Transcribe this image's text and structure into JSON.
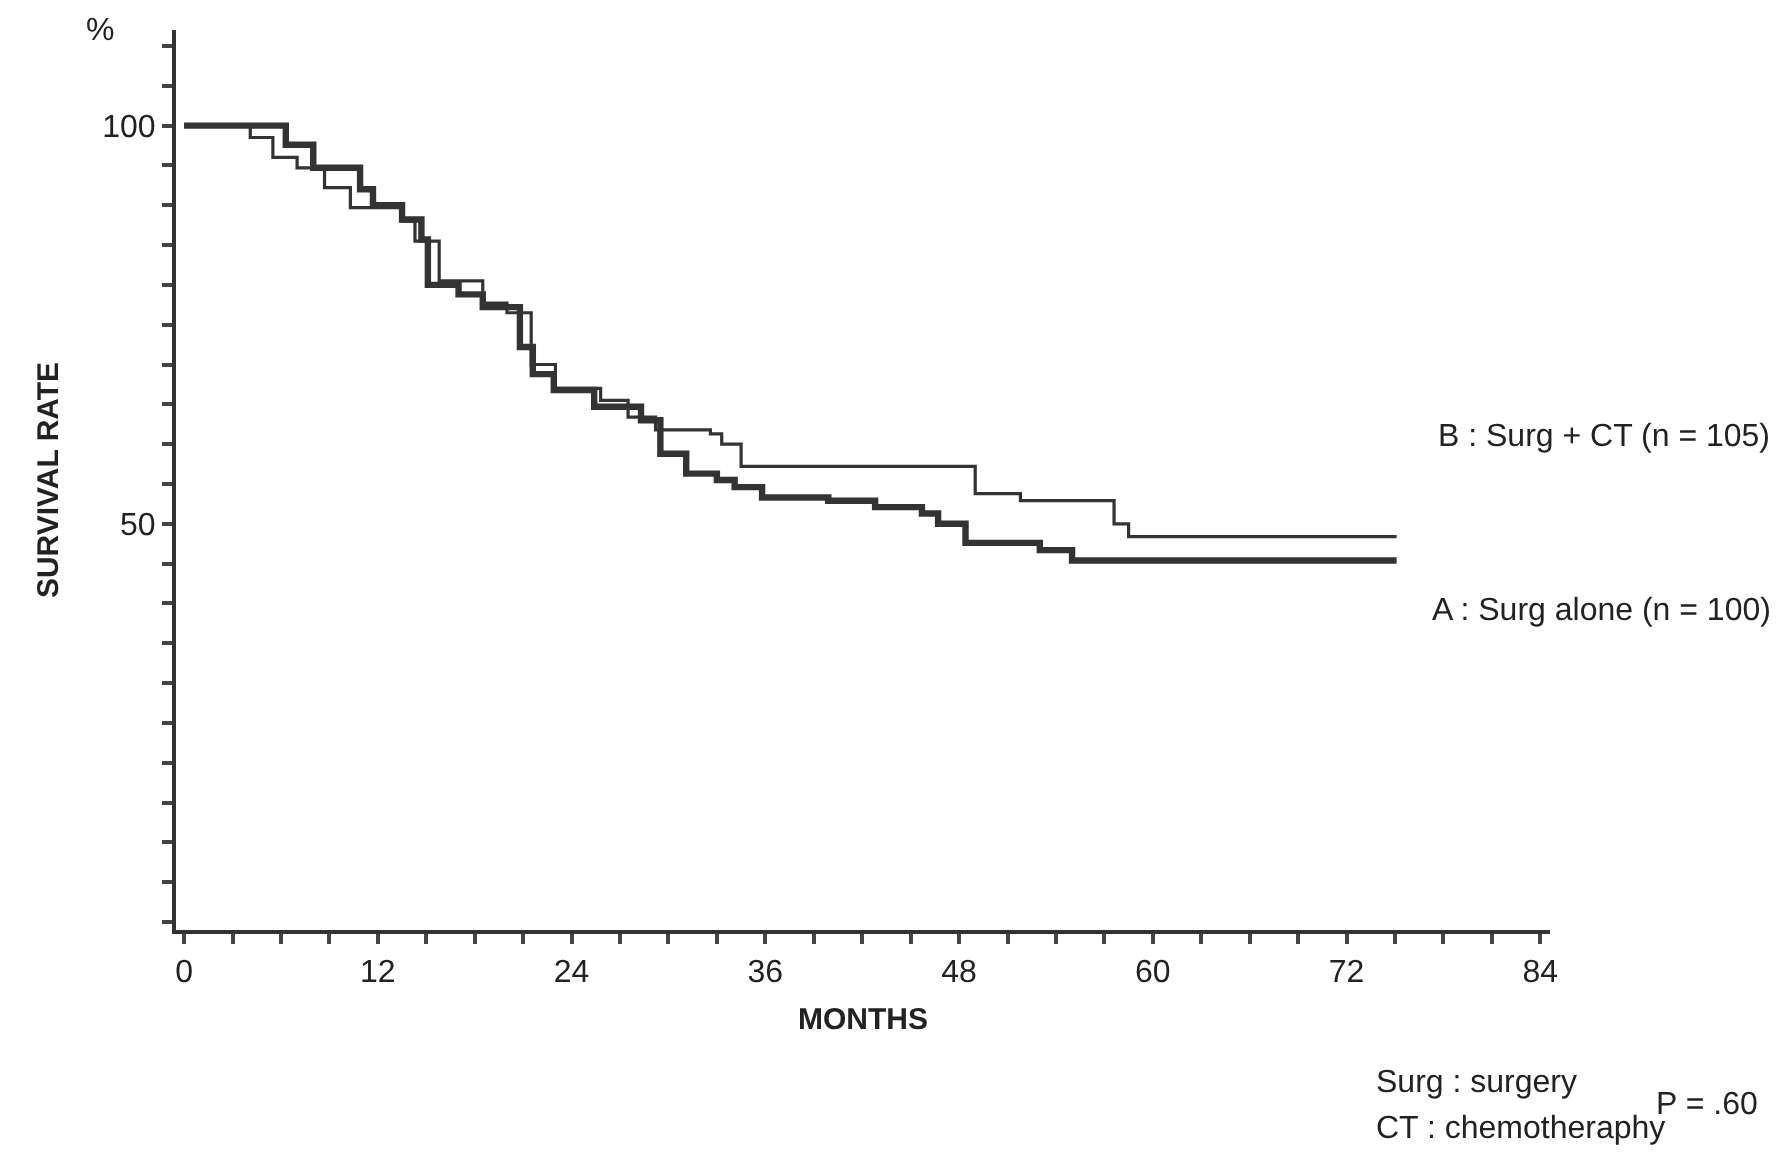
{
  "chart_data": {
    "type": "step",
    "xlabel": "MONTHS",
    "ylabel": "SURVIVAL RATE",
    "xlim": [
      -0.5,
      84.6
    ],
    "ylim": [
      -1,
      112
    ],
    "xticks": [
      0,
      {
        "value": 3,
        "label": null
      },
      {
        "value": 6,
        "label": null
      },
      {
        "value": 9,
        "label": null
      },
      12,
      {
        "value": 15,
        "label": null
      },
      {
        "value": 18,
        "label": null
      },
      {
        "value": 21,
        "label": null
      },
      24,
      {
        "value": 27,
        "label": null
      },
      {
        "value": 30,
        "label": null
      },
      {
        "value": 33,
        "label": null
      },
      36,
      {
        "value": 39,
        "label": null
      },
      {
        "value": 42,
        "label": null
      },
      {
        "value": 45,
        "label": null
      },
      48,
      {
        "value": 51,
        "label": null
      },
      {
        "value": 54,
        "label": null
      },
      {
        "value": 57,
        "label": null
      },
      60,
      {
        "value": 63,
        "label": null
      },
      {
        "value": 66,
        "label": null
      },
      {
        "value": 69,
        "label": null
      },
      72,
      {
        "value": 75,
        "label": null
      },
      {
        "value": 78,
        "label": null
      },
      {
        "value": 81,
        "label": null
      },
      84
    ],
    "yticks": [
      {
        "value": 0,
        "label": null
      },
      {
        "value": 5,
        "label": null
      },
      {
        "value": 10,
        "label": null
      },
      {
        "value": 15,
        "label": null
      },
      {
        "value": 20,
        "label": null
      },
      {
        "value": 25,
        "label": null
      },
      {
        "value": 30,
        "label": null
      },
      {
        "value": 35,
        "label": null
      },
      {
        "value": 40,
        "label": null
      },
      {
        "value": 45,
        "label": null
      },
      50,
      {
        "value": 55,
        "label": null
      },
      {
        "value": 60,
        "label": null
      },
      {
        "value": 65,
        "label": null
      },
      {
        "value": 70,
        "label": null
      },
      {
        "value": 75,
        "label": null
      },
      {
        "value": 80,
        "label": null
      },
      {
        "value": 85,
        "label": null
      },
      {
        "value": 90,
        "label": null
      },
      {
        "value": 95,
        "label": null
      },
      100,
      {
        "value": 105,
        "label": null
      },
      {
        "value": 110,
        "label": null
      }
    ],
    "legend": false,
    "marker": "none",
    "line_style": "solid",
    "series": [
      {
        "name": "A : Surg alone (n = 100)",
        "color": "#333333",
        "x": [
          0,
          6.3,
          8,
          10.9,
          11.7,
          13.5,
          14.7,
          15.1,
          17,
          18.5,
          20.8,
          21.6,
          22.9,
          25.4,
          28.3,
          29.5,
          31.1,
          33,
          34.1,
          35.8,
          39.9,
          42.8,
          45.7,
          46.7,
          48.4,
          53,
          55,
          75.1
        ],
        "values": [
          100,
          97.6,
          94.7,
          92,
          90,
          88.2,
          85.7,
          80,
          78.8,
          77.2,
          72.2,
          68.8,
          66.8,
          64.7,
          63,
          58.8,
          56.3,
          55.5,
          54.6,
          53.3,
          52.9,
          52.1,
          51.3,
          50,
          47.6,
          46.7,
          45.4,
          45.4
        ]
      },
      {
        "name": "B : Surg + CT (n = 105)",
        "color": "#333333",
        "x": [
          0,
          4.1,
          5.5,
          7,
          8.7,
          10.3,
          13.5,
          14.3,
          15.8,
          18.5,
          20,
          21.5,
          23,
          25.8,
          27.5,
          29.2,
          32.6,
          33.3,
          34.5,
          49,
          51.8,
          57.6,
          58.5,
          75.1
        ],
        "values": [
          100,
          98.5,
          96,
          94.7,
          92.2,
          89.7,
          88,
          85.5,
          80.5,
          77.7,
          76.5,
          70,
          67,
          65.5,
          63.4,
          61.8,
          61.3,
          60,
          57.2,
          53.8,
          52.9,
          50,
          48.4,
          48.4
        ]
      }
    ],
    "annotations": [
      "%",
      "Surg : surgery",
      "CT : chemotheraphy",
      "P = .60"
    ]
  }
}
